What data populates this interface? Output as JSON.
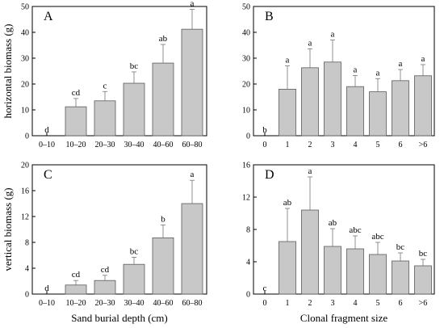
{
  "chart_data": [
    {
      "type": "bar",
      "panel_label": "A",
      "title": "",
      "xlabel": "",
      "ylabel": "horizontal biomass (g)",
      "categories": [
        "0–10",
        "10–20",
        "20–30",
        "30–40",
        "40–60",
        "60–80"
      ],
      "values": [
        0,
        11.2,
        13.5,
        20.3,
        28.1,
        41.2
      ],
      "errors": [
        0,
        3.2,
        3.6,
        4.4,
        7.2,
        7.7
      ],
      "letters": [
        "d",
        "cd",
        "c",
        "bc",
        "ab",
        "a"
      ],
      "ylim": [
        0,
        50
      ],
      "yticks": [
        0,
        10,
        20,
        30,
        40,
        50
      ],
      "grid": false
    },
    {
      "type": "bar",
      "panel_label": "B",
      "title": "",
      "xlabel": "",
      "ylabel": "",
      "categories": [
        "0",
        "1",
        "2",
        "3",
        "4",
        "5",
        "6",
        ">6"
      ],
      "values": [
        0,
        18,
        26.3,
        28.5,
        19,
        17,
        21.3,
        23.2
      ],
      "errors": [
        0,
        9,
        7.3,
        8.5,
        4.3,
        5.1,
        4.3,
        4.3
      ],
      "letters": [
        "b",
        "a",
        "a",
        "a",
        "a",
        "a",
        "a",
        "a"
      ],
      "ylim": [
        0,
        50
      ],
      "yticks": [
        0,
        10,
        20,
        30,
        40,
        50
      ],
      "grid": false
    },
    {
      "type": "bar",
      "panel_label": "C",
      "title": "",
      "xlabel": "Sand burial depth (cm)",
      "ylabel": "vertical biomass (g)",
      "categories": [
        "0–10",
        "10–20",
        "20–30",
        "30–40",
        "40–60",
        "60–80"
      ],
      "values": [
        0,
        1.4,
        2.1,
        4.6,
        8.7,
        14.0
      ],
      "errors": [
        0,
        0.7,
        0.8,
        1.1,
        2.0,
        3.6
      ],
      "letters": [
        "d",
        "cd",
        "cd",
        "bc",
        "b",
        "a"
      ],
      "ylim": [
        0,
        20
      ],
      "yticks": [
        0,
        4,
        8,
        12,
        16,
        20
      ],
      "grid": false
    },
    {
      "type": "bar",
      "panel_label": "D",
      "title": "",
      "xlabel": "Clonal fragment size",
      "ylabel": "",
      "categories": [
        "0",
        "1",
        "2",
        "3",
        "4",
        "5",
        "6",
        ">6"
      ],
      "values": [
        0,
        6.5,
        10.4,
        5.9,
        5.6,
        4.9,
        4.1,
        3.5
      ],
      "errors": [
        0,
        4.1,
        4.1,
        2.2,
        1.6,
        1.5,
        1.0,
        0.8
      ],
      "letters": [
        "c",
        "ab",
        "a",
        "ab",
        "abc",
        "abc",
        "bc",
        "bc"
      ],
      "ylim": [
        0,
        16
      ],
      "yticks": [
        0,
        4,
        8,
        12,
        16
      ],
      "grid": false
    }
  ],
  "colors": {
    "bar_fill": "#c8c8c8",
    "bar_stroke": "#5a5a5a",
    "axis": "#000000",
    "error_bar": "#777777"
  }
}
